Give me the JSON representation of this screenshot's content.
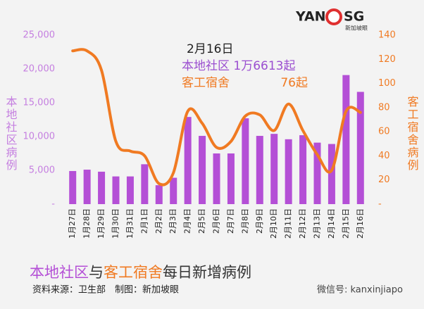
{
  "chart_data": {
    "type": "combo",
    "logo": {
      "left": "YAN",
      "right": "SG",
      "sub": "新加坡眼"
    },
    "categories": [
      "1月27日",
      "1月28日",
      "1月29日",
      "1月30日",
      "1月31日",
      "2月1日",
      "2月2日",
      "2月3日",
      "2月4日",
      "2月5日",
      "2月6日",
      "2月7日",
      "2月8日",
      "2月9日",
      "2月10日",
      "2月11日",
      "2月12日",
      "2月13日",
      "2月14日",
      "2月15日",
      "2月16日"
    ],
    "series": [
      {
        "name": "本地社区",
        "type": "bar",
        "axis": "y",
        "color": "#b44fd6",
        "values": [
          4900,
          5100,
          4800,
          4100,
          4100,
          5900,
          2800,
          3900,
          12900,
          10100,
          7500,
          7500,
          12700,
          10100,
          10400,
          9600,
          10200,
          9100,
          8900,
          19100,
          16613
        ]
      },
      {
        "name": "客工宿舍",
        "type": "line",
        "axis": "y2",
        "color": "#f07a22",
        "values": [
          127,
          127,
          111,
          52,
          44,
          40,
          17,
          26,
          77,
          67,
          47,
          52,
          73,
          74,
          61,
          83,
          61,
          41,
          28,
          77,
          76
        ]
      }
    ],
    "ylim": [
      0,
      25000
    ],
    "yticks": [
      {
        "value": 0,
        "label": "-"
      },
      {
        "value": 5000,
        "label": "5,000"
      },
      {
        "value": 10000,
        "label": "10,000"
      },
      {
        "value": 15000,
        "label": "15,000"
      },
      {
        "value": 20000,
        "label": "20,000"
      },
      {
        "value": 25000,
        "label": "25,000"
      }
    ],
    "y2lim": [
      0,
      140
    ],
    "y2ticks": [
      {
        "value": 0,
        "label": "-"
      },
      20,
      40,
      60,
      80,
      100,
      120,
      140
    ],
    "ylabel": "本地社区病例",
    "y2label": "客工宿舍病例",
    "annotation": {
      "date": "2月16日",
      "local": "本地社区 1万6613起",
      "dorm": "客工宿舍",
      "dorm_value": "76起"
    },
    "title": [
      "本地社区",
      "与",
      "客工宿舍",
      "每日新增病例"
    ],
    "source": "资料来源：卫生部　制图：新加坡眼",
    "watermark": "微信号: kanxinjiapo"
  }
}
